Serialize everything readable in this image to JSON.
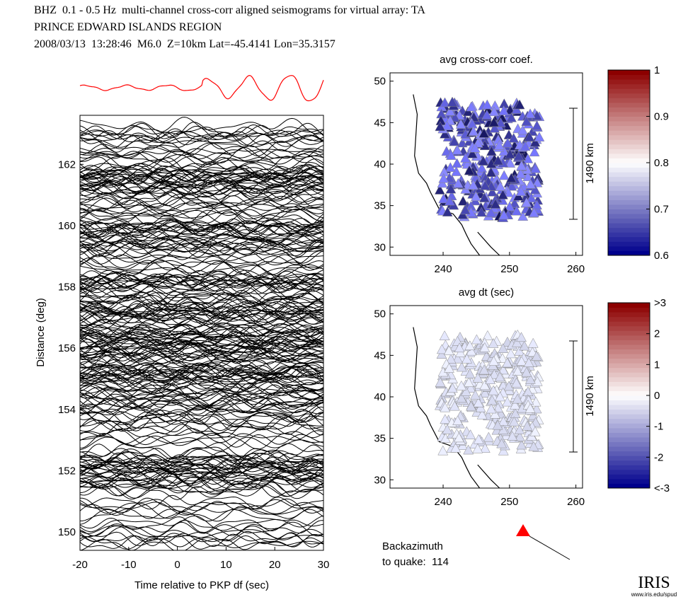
{
  "header": {
    "line1": "BHZ  0.1 - 0.5 Hz  multi-channel cross-corr aligned seismograms for virtual array: TA",
    "line2": "PRINCE EDWARD ISLANDS REGION",
    "line3": "2008/03/13  13:28:46  M6.0  Z=10km Lat=-45.4141 Lon=35.3157"
  },
  "chart_data": [
    {
      "type": "line",
      "name": "seismograms",
      "xlabel": "Time relative to PKP df (sec)",
      "ylabel": "Distance (deg)",
      "xlim": [
        -20,
        30
      ],
      "ylim": [
        149.4,
        163.6
      ],
      "xticks": [
        "-20",
        "-10",
        "0",
        "10",
        "20",
        "30"
      ],
      "yticks": [
        "150",
        "152",
        "154",
        "156",
        "158",
        "160",
        "162"
      ],
      "stack_color": "#ff0000"
    },
    {
      "type": "scatter",
      "name": "map-cc",
      "title": "avg cross-corr coef.",
      "xlim": [
        232,
        261
      ],
      "ylim": [
        29,
        51
      ],
      "xticks": [
        "240",
        "250",
        "260"
      ],
      "yticks": [
        "30",
        "35",
        "40",
        "45",
        "50"
      ],
      "scale_label": "1490 km",
      "colorbar": {
        "range": [
          0.6,
          1
        ],
        "ticks": [
          "0.6",
          "0.7",
          "0.8",
          "0.9",
          "1"
        ]
      }
    },
    {
      "type": "scatter",
      "name": "map-dt",
      "title": "avg dt (sec)",
      "xlim": [
        232,
        261
      ],
      "ylim": [
        29,
        51
      ],
      "xticks": [
        "240",
        "250",
        "260"
      ],
      "yticks": [
        "30",
        "35",
        "40",
        "45",
        "50"
      ],
      "scale_label": "1490 km",
      "colorbar": {
        "range": [
          -3,
          3
        ],
        "ticks": [
          "<-3",
          "-2",
          "-1",
          "0",
          "1",
          "2",
          ">3"
        ]
      }
    }
  ],
  "backazimuth": {
    "line1": "Backazimuth",
    "line2": "to quake:  114",
    "value": 114,
    "color": "#ff0000"
  },
  "logo": {
    "text": "IRIS",
    "url": "www.iris.edu/spud"
  }
}
